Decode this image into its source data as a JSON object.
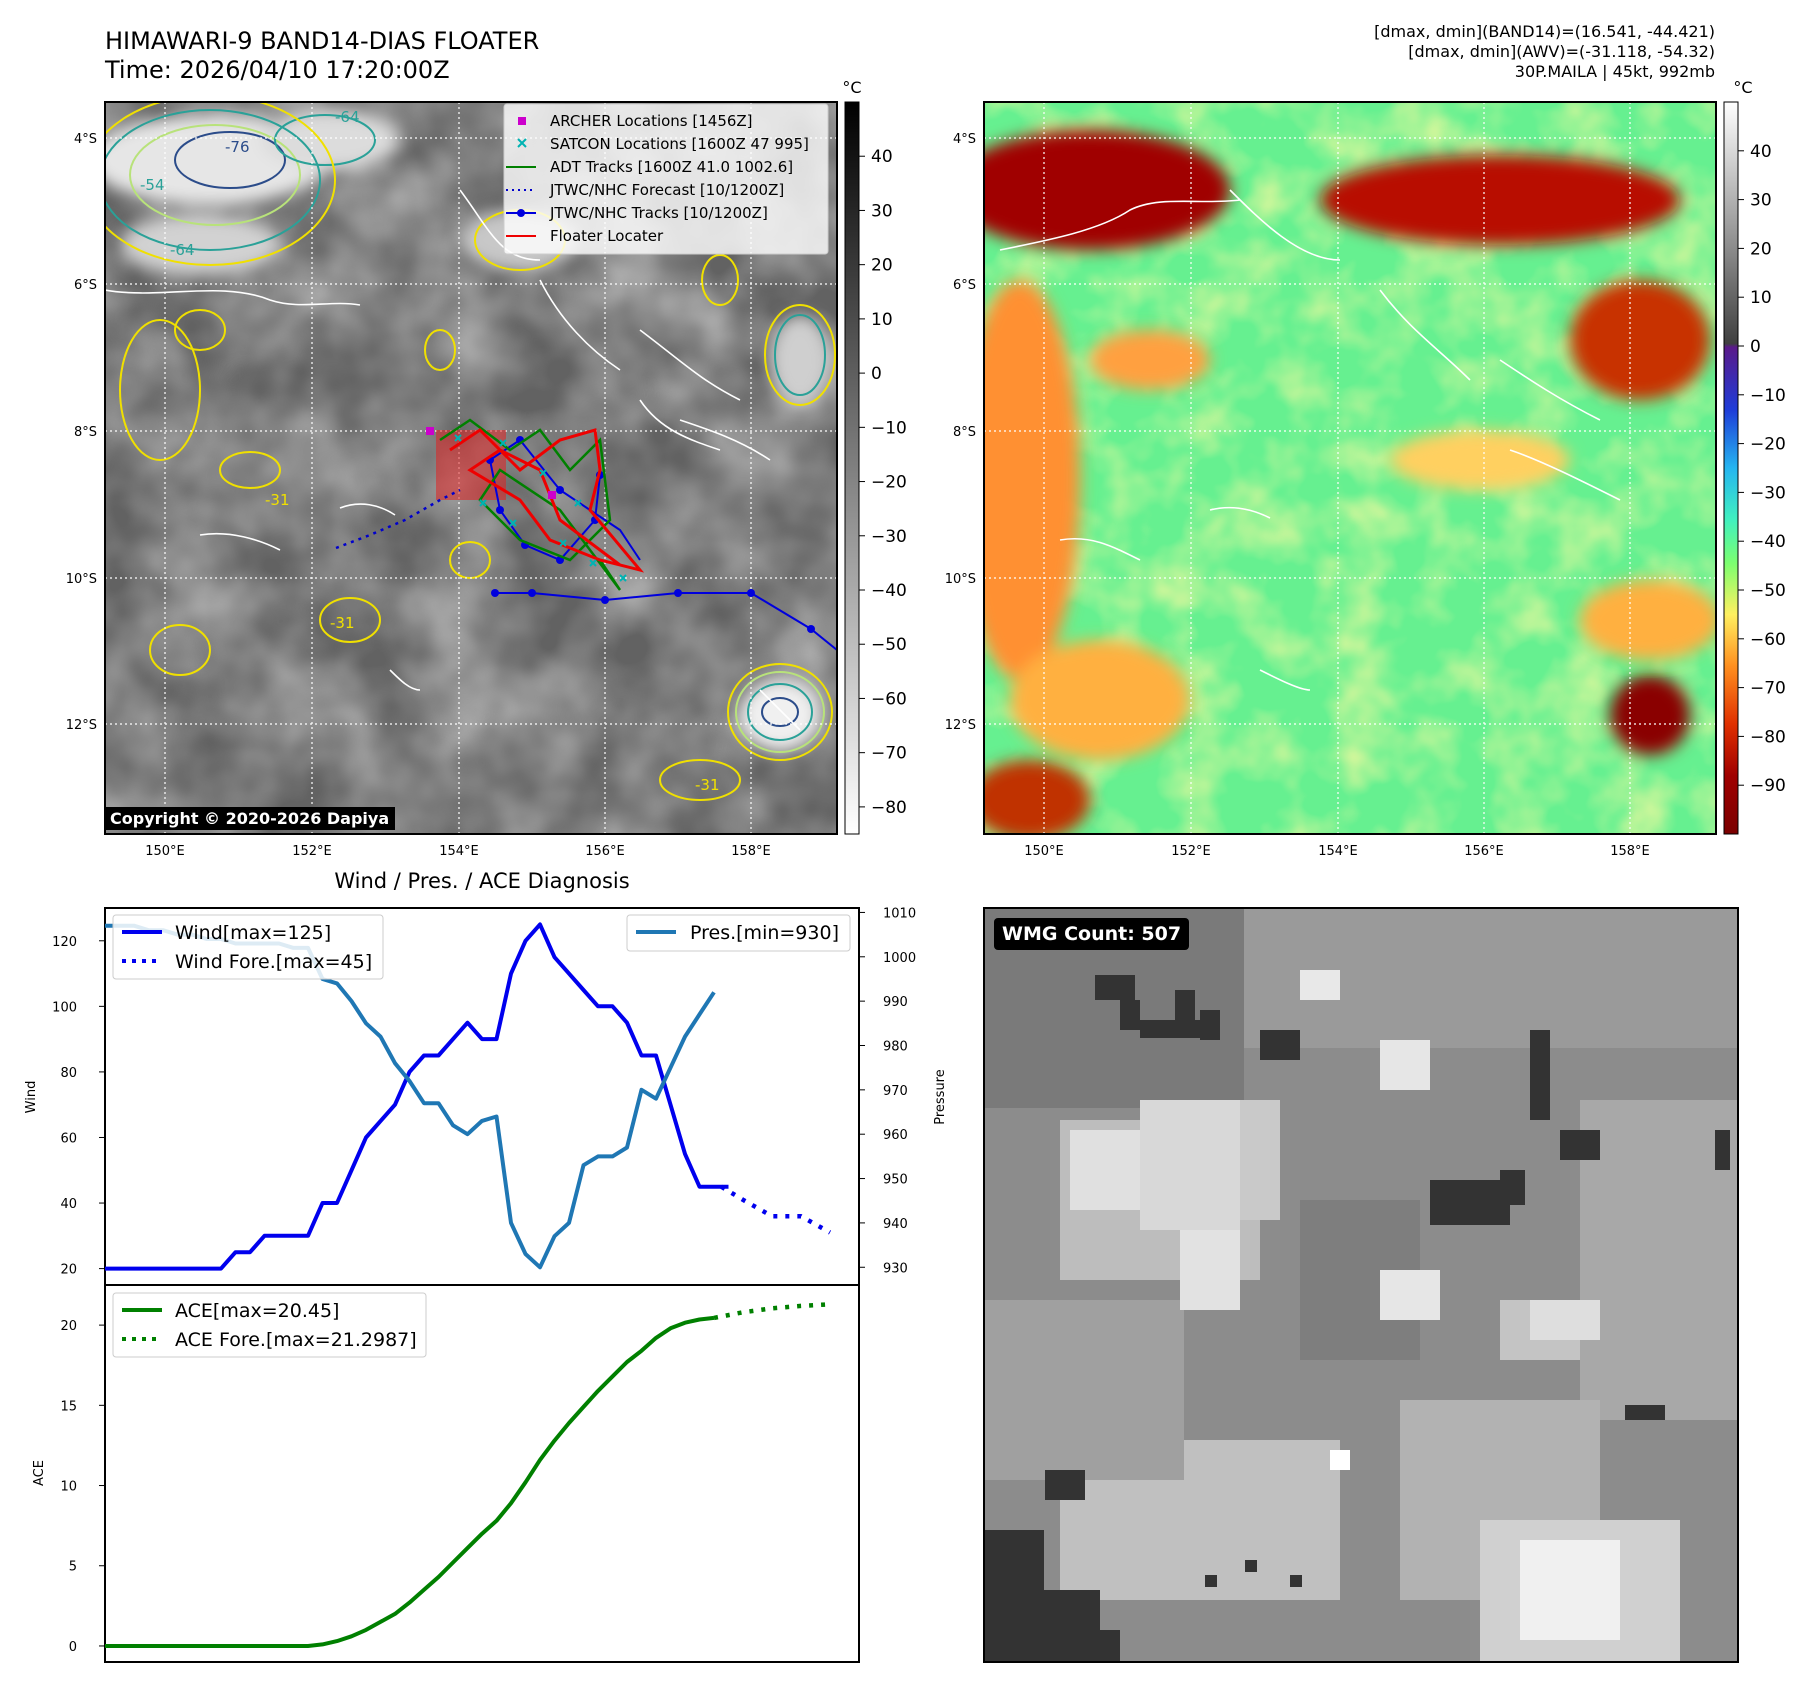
{
  "header": {
    "title_line1": "HIMAWARI-9 BAND14-DIAS FLOATER",
    "title_line2": "Time: 2026/04/10 17:20:00Z",
    "info_line1": "[dmax, dmin](BAND14)=(16.541, -44.421)",
    "info_line2": "[dmax, dmin](AWV)=(-31.118, -54.32)",
    "info_line3": "30P.MAILA | 45kt, 992mb"
  },
  "copyright": "Copyright © 2020-2026 Dapiya",
  "wmg_count": "WMG Count: 507",
  "map": {
    "lon_ticks": [
      "150°E",
      "152°E",
      "154°E",
      "156°E",
      "158°E"
    ],
    "lat_ticks": [
      "4°S",
      "6°S",
      "8°S",
      "10°S",
      "12°S"
    ],
    "legend": [
      "ARCHER Locations [1456Z]",
      "SATCON Locations [1600Z 47 995]",
      "ADT Tracks [1600Z 41.0 1002.6]",
      "JTWC/NHC Forecast [10/1200Z]",
      "JTWC/NHC Tracks [10/1200Z]",
      "Floater Locater"
    ],
    "colorbar_unit": "°C",
    "ir_ticks": [
      "40",
      "30",
      "20",
      "10",
      "0",
      "−10",
      "−20",
      "−30",
      "−40",
      "−50",
      "−60",
      "−70",
      "−80"
    ],
    "ir_tick_values": [
      40,
      30,
      20,
      10,
      0,
      -10,
      -20,
      -30,
      -40,
      -50,
      -60,
      -70,
      -80
    ],
    "ir_range": [
      -85,
      50
    ],
    "awv_ticks": [
      "40",
      "30",
      "20",
      "10",
      "0",
      "−10",
      "−20",
      "−30",
      "−40",
      "−50",
      "−60",
      "−70",
      "−80",
      "−90"
    ],
    "awv_tick_values": [
      40,
      30,
      20,
      10,
      0,
      -10,
      -20,
      -30,
      -40,
      -50,
      -60,
      -70,
      -80,
      -90
    ],
    "awv_range": [
      -100,
      50
    ],
    "contour_labels": [
      "-76",
      "-64",
      "-54",
      "-64",
      "-31",
      "-31",
      "-31"
    ],
    "colors": {
      "archer": "#cc00cc",
      "satcon": "#00b3b3",
      "adt": "#008000",
      "forecast": "#0000cc",
      "tracks": "#0000dd",
      "floater": "#ee0000"
    }
  },
  "diagnosis": {
    "title": "Wind / Pres. / ACE Diagnosis",
    "wind_label": "Wind",
    "pressure_label": "Pressure",
    "ace_label": "ACE",
    "legend_wind": "Wind[max=125]",
    "legend_wind_fore": "Wind Fore.[max=45]",
    "legend_pres": "Pres.[min=930]",
    "legend_ace": "ACE[max=20.45]",
    "legend_ace_fore": "ACE Fore.[max=21.2987]"
  },
  "chart_data": [
    {
      "type": "line",
      "title": "Wind / Pres. / ACE Diagnosis",
      "ylabel": "Wind",
      "y2label": "Pressure",
      "xlim": [
        0,
        52
      ],
      "ylim": [
        15,
        130
      ],
      "y2lim": [
        926,
        1011
      ],
      "yticks": [
        20,
        40,
        60,
        80,
        100,
        120
      ],
      "y2ticks": [
        930,
        940,
        950,
        960,
        970,
        980,
        990,
        1000,
        1010
      ],
      "series": [
        {
          "name": "Wind[max=125]",
          "color": "#0000ee",
          "style": "solid",
          "x": [
            0,
            1,
            2,
            3,
            4,
            5,
            6,
            7,
            8,
            9,
            10,
            11,
            12,
            13,
            14,
            15,
            16,
            17,
            18,
            19,
            20,
            21,
            22,
            23,
            24,
            25,
            26,
            27,
            28,
            29,
            30,
            31,
            32,
            33,
            34,
            35,
            36,
            37,
            38,
            39,
            40,
            41,
            42,
            43
          ],
          "values": [
            20,
            20,
            20,
            20,
            20,
            20,
            20,
            20,
            20,
            25,
            25,
            30,
            30,
            30,
            30,
            40,
            40,
            50,
            60,
            65,
            70,
            80,
            85,
            85,
            90,
            95,
            90,
            90,
            110,
            120,
            125,
            115,
            110,
            105,
            100,
            100,
            95,
            85,
            85,
            70,
            55,
            45,
            45,
            45
          ]
        },
        {
          "name": "Wind Fore.[max=45]",
          "color": "#0000ee",
          "style": "dotted",
          "x": [
            42.5,
            44,
            46,
            48,
            50
          ],
          "values": [
            45,
            41,
            36,
            36,
            31
          ]
        },
        {
          "name": "Pres.[min=930]",
          "color": "#1f77b4",
          "style": "solid",
          "axis": "y2",
          "x": [
            0,
            1,
            2,
            3,
            4,
            5,
            6,
            7,
            8,
            9,
            10,
            11,
            12,
            13,
            14,
            15,
            16,
            17,
            18,
            19,
            20,
            21,
            22,
            23,
            24,
            25,
            26,
            27,
            28,
            29,
            30,
            31,
            32,
            33,
            34,
            35,
            36,
            37,
            38,
            39,
            40,
            41,
            42
          ],
          "values": [
            1007,
            1007,
            1007,
            1006,
            1006,
            1005,
            1005,
            1004,
            1004,
            1003,
            1003,
            1003,
            1003,
            1002,
            1002,
            995,
            994,
            990,
            985,
            982,
            976,
            972,
            967,
            967,
            962,
            960,
            963,
            964,
            940,
            933,
            930,
            937,
            940,
            953,
            955,
            955,
            957,
            970,
            968,
            975,
            982,
            987,
            992
          ]
        }
      ]
    },
    {
      "type": "line",
      "ylabel": "ACE",
      "xlim": [
        0,
        52
      ],
      "ylim": [
        -1,
        22.5
      ],
      "yticks": [
        0,
        5,
        10,
        15,
        20
      ],
      "series": [
        {
          "name": "ACE[max=20.45]",
          "color": "#008000",
          "style": "solid",
          "x": [
            0,
            1,
            2,
            3,
            4,
            5,
            6,
            7,
            8,
            9,
            10,
            11,
            12,
            13,
            14,
            15,
            16,
            17,
            18,
            19,
            20,
            21,
            22,
            23,
            24,
            25,
            26,
            27,
            28,
            29,
            30,
            31,
            32,
            33,
            34,
            35,
            36,
            37,
            38,
            39,
            40,
            41,
            42
          ],
          "values": [
            0,
            0,
            0,
            0,
            0,
            0,
            0,
            0,
            0,
            0,
            0,
            0,
            0,
            0,
            0,
            0.1,
            0.3,
            0.6,
            1.0,
            1.5,
            2.0,
            2.7,
            3.5,
            4.3,
            5.2,
            6.1,
            7.0,
            7.8,
            8.9,
            10.2,
            11.6,
            12.8,
            13.9,
            14.9,
            15.9,
            16.8,
            17.7,
            18.4,
            19.2,
            19.8,
            20.15,
            20.35,
            20.45
          ]
        },
        {
          "name": "ACE Fore.[max=21.2987]",
          "color": "#008000",
          "style": "dotted",
          "x": [
            42,
            44,
            46,
            48,
            50
          ],
          "values": [
            20.45,
            20.8,
            21.05,
            21.2,
            21.3
          ]
        }
      ]
    }
  ]
}
